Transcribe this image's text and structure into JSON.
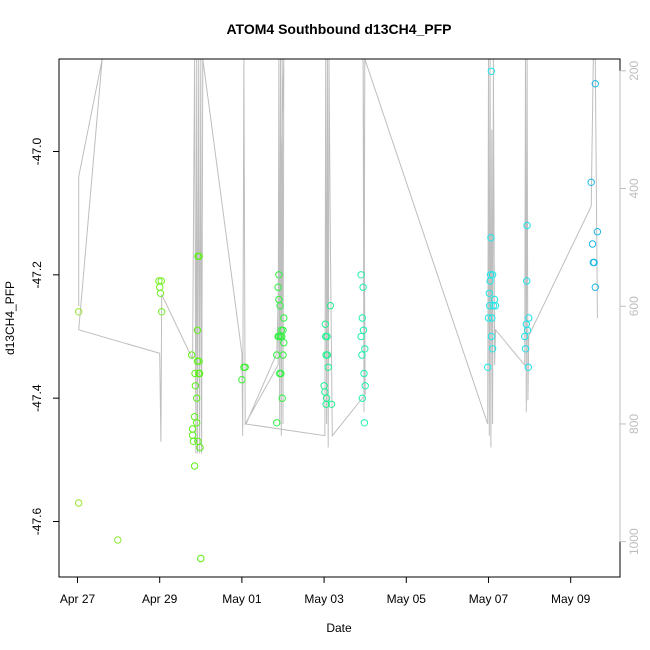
{
  "chart_data": {
    "type": "scatter",
    "title": "ATOM4 Southbound d13CH4_PFP",
    "xlabel": "Date",
    "ylabel": "d13CH4_PFP",
    "x_ticks": [
      {
        "label": "Apr 27",
        "day": 0
      },
      {
        "label": "Apr 29",
        "day": 2
      },
      {
        "label": "May 01",
        "day": 4
      },
      {
        "label": "May 03",
        "day": 6
      },
      {
        "label": "May 05",
        "day": 8
      },
      {
        "label": "May 07",
        "day": 10
      },
      {
        "label": "May 09",
        "day": 12
      }
    ],
    "xlim_day": [
      -0.45,
      13.2
    ],
    "ylim": [
      -47.69,
      -46.85
    ],
    "y_ticks": [
      -47.0,
      -47.2,
      -47.4,
      -47.6
    ],
    "y_tick_labels": [
      "-47.0",
      "-47.2",
      "-47.4",
      "-47.6"
    ],
    "y2_ticks": [
      200,
      400,
      600,
      800,
      1000
    ],
    "y2_tick_labels": [
      "200",
      "400",
      "600",
      "800",
      "1000"
    ],
    "y2lim": [
      180,
      1060
    ],
    "grid": false,
    "legend": "none",
    "colors": {
      "line": "#bebebe",
      "axis": "#000000",
      "axis2": "#bebebe"
    },
    "points": [
      {
        "day": 0.03,
        "y": -47.26,
        "color": "#99e62e"
      },
      {
        "day": 0.03,
        "y": -47.57,
        "color": "#99e62e"
      },
      {
        "day": 0.98,
        "y": -47.63,
        "color": "#8ee630"
      },
      {
        "day": 1.98,
        "y": -47.21,
        "color": "#70f020"
      },
      {
        "day": 2.0,
        "y": -47.22,
        "color": "#70f020"
      },
      {
        "day": 2.04,
        "y": -47.21,
        "color": "#70f020"
      },
      {
        "day": 2.02,
        "y": -47.23,
        "color": "#70f020"
      },
      {
        "day": 2.05,
        "y": -47.26,
        "color": "#70f020"
      },
      {
        "day": 2.78,
        "y": -47.33,
        "color": "#5cf018"
      },
      {
        "day": 2.8,
        "y": -47.45,
        "color": "#5cf018"
      },
      {
        "day": 2.8,
        "y": -47.46,
        "color": "#5cf018"
      },
      {
        "day": 2.82,
        "y": -47.47,
        "color": "#5cf018"
      },
      {
        "day": 2.85,
        "y": -47.43,
        "color": "#5cf018"
      },
      {
        "day": 2.85,
        "y": -47.51,
        "color": "#5cf018"
      },
      {
        "day": 2.86,
        "y": -47.36,
        "color": "#5cf018"
      },
      {
        "day": 2.87,
        "y": -47.38,
        "color": "#5cf018"
      },
      {
        "day": 2.9,
        "y": -47.44,
        "color": "#5cf018"
      },
      {
        "day": 2.9,
        "y": -47.4,
        "color": "#5cf018"
      },
      {
        "day": 2.92,
        "y": -47.29,
        "color": "#5cf018"
      },
      {
        "day": 2.92,
        "y": -47.34,
        "color": "#5cf018"
      },
      {
        "day": 2.93,
        "y": -47.17,
        "color": "#5cf018"
      },
      {
        "day": 2.93,
        "y": -47.47,
        "color": "#5cf018"
      },
      {
        "day": 2.95,
        "y": -47.36,
        "color": "#5cf018"
      },
      {
        "day": 2.96,
        "y": -47.17,
        "color": "#5cf018"
      },
      {
        "day": 2.96,
        "y": -47.34,
        "color": "#5cf018"
      },
      {
        "day": 2.97,
        "y": -47.36,
        "color": "#5cf018"
      },
      {
        "day": 2.98,
        "y": -47.48,
        "color": "#5cf018"
      },
      {
        "day": 3.0,
        "y": -47.66,
        "color": "#5cf018"
      },
      {
        "day": 4.0,
        "y": -47.37,
        "color": "#3cf030"
      },
      {
        "day": 4.05,
        "y": -47.35,
        "color": "#3cf030"
      },
      {
        "day": 4.08,
        "y": -47.35,
        "color": "#3cf030"
      },
      {
        "day": 4.85,
        "y": -47.44,
        "color": "#30f040"
      },
      {
        "day": 4.85,
        "y": -47.33,
        "color": "#30f040"
      },
      {
        "day": 4.88,
        "y": -47.3,
        "color": "#30f040"
      },
      {
        "day": 4.88,
        "y": -47.22,
        "color": "#30f040"
      },
      {
        "day": 4.9,
        "y": -47.24,
        "color": "#30f040"
      },
      {
        "day": 4.9,
        "y": -47.2,
        "color": "#30f040"
      },
      {
        "day": 4.9,
        "y": -47.3,
        "color": "#30f040"
      },
      {
        "day": 4.92,
        "y": -47.36,
        "color": "#30f040"
      },
      {
        "day": 4.93,
        "y": -47.25,
        "color": "#30f040"
      },
      {
        "day": 4.94,
        "y": -47.3,
        "color": "#30f040"
      },
      {
        "day": 4.95,
        "y": -47.36,
        "color": "#30f040"
      },
      {
        "day": 4.96,
        "y": -47.29,
        "color": "#30f040"
      },
      {
        "day": 4.97,
        "y": -47.3,
        "color": "#30f040"
      },
      {
        "day": 4.98,
        "y": -47.4,
        "color": "#30f040"
      },
      {
        "day": 5.0,
        "y": -47.33,
        "color": "#30f040"
      },
      {
        "day": 5.0,
        "y": -47.29,
        "color": "#30f040"
      },
      {
        "day": 5.02,
        "y": -47.27,
        "color": "#30f040"
      },
      {
        "day": 5.02,
        "y": -47.31,
        "color": "#30f040"
      },
      {
        "day": 6.0,
        "y": -47.38,
        "color": "#20f090"
      },
      {
        "day": 6.02,
        "y": -47.39,
        "color": "#20f090"
      },
      {
        "day": 6.03,
        "y": -47.28,
        "color": "#20f090"
      },
      {
        "day": 6.04,
        "y": -47.3,
        "color": "#20f090"
      },
      {
        "day": 6.05,
        "y": -47.33,
        "color": "#20f090"
      },
      {
        "day": 6.05,
        "y": -47.41,
        "color": "#20f090"
      },
      {
        "day": 6.06,
        "y": -47.4,
        "color": "#20f090"
      },
      {
        "day": 6.07,
        "y": -47.3,
        "color": "#20f090"
      },
      {
        "day": 6.08,
        "y": -47.33,
        "color": "#20f090"
      },
      {
        "day": 6.1,
        "y": -47.35,
        "color": "#20f090"
      },
      {
        "day": 6.15,
        "y": -47.25,
        "color": "#20f090"
      },
      {
        "day": 6.18,
        "y": -47.41,
        "color": "#20f090"
      },
      {
        "day": 6.9,
        "y": -47.2,
        "color": "#20f0b0"
      },
      {
        "day": 6.9,
        "y": -47.3,
        "color": "#20f0b0"
      },
      {
        "day": 6.92,
        "y": -47.33,
        "color": "#20f0b0"
      },
      {
        "day": 6.93,
        "y": -47.27,
        "color": "#20f0b0"
      },
      {
        "day": 6.93,
        "y": -47.4,
        "color": "#20f0b0"
      },
      {
        "day": 6.95,
        "y": -47.22,
        "color": "#20f0b0"
      },
      {
        "day": 6.96,
        "y": -47.29,
        "color": "#20f0b0"
      },
      {
        "day": 6.97,
        "y": -47.36,
        "color": "#20f0b0"
      },
      {
        "day": 6.98,
        "y": -47.44,
        "color": "#20f0b0"
      },
      {
        "day": 6.99,
        "y": -47.32,
        "color": "#20f0b0"
      },
      {
        "day": 7.0,
        "y": -47.38,
        "color": "#20f0b0"
      },
      {
        "day": 9.98,
        "y": -47.35,
        "color": "#20e8e8"
      },
      {
        "day": 10.0,
        "y": -47.27,
        "color": "#20e8e8"
      },
      {
        "day": 10.02,
        "y": -47.23,
        "color": "#20e8e8"
      },
      {
        "day": 10.03,
        "y": -47.25,
        "color": "#20e8e8"
      },
      {
        "day": 10.04,
        "y": -47.21,
        "color": "#20e8e8"
      },
      {
        "day": 10.05,
        "y": -47.2,
        "color": "#20e8e8"
      },
      {
        "day": 10.06,
        "y": -47.14,
        "color": "#20e8e8"
      },
      {
        "day": 10.07,
        "y": -46.87,
        "color": "#20e8e8"
      },
      {
        "day": 10.07,
        "y": -47.3,
        "color": "#20e8e8"
      },
      {
        "day": 10.08,
        "y": -47.27,
        "color": "#20e8e8"
      },
      {
        "day": 10.1,
        "y": -47.2,
        "color": "#20e8e8"
      },
      {
        "day": 10.1,
        "y": -47.32,
        "color": "#20e8e8"
      },
      {
        "day": 10.12,
        "y": -47.25,
        "color": "#20e8e8"
      },
      {
        "day": 10.15,
        "y": -47.24,
        "color": "#20e8e8"
      },
      {
        "day": 10.17,
        "y": -47.25,
        "color": "#20e8e8"
      },
      {
        "day": 10.88,
        "y": -47.3,
        "color": "#20e0e8"
      },
      {
        "day": 10.9,
        "y": -47.32,
        "color": "#20e0e8"
      },
      {
        "day": 10.92,
        "y": -47.28,
        "color": "#20e0e8"
      },
      {
        "day": 10.93,
        "y": -47.21,
        "color": "#20e0e8"
      },
      {
        "day": 10.94,
        "y": -47.12,
        "color": "#20e0e8"
      },
      {
        "day": 10.95,
        "y": -47.29,
        "color": "#20e0e8"
      },
      {
        "day": 10.97,
        "y": -47.35,
        "color": "#20e0e8"
      },
      {
        "day": 10.98,
        "y": -47.27,
        "color": "#20e0e8"
      },
      {
        "day": 12.5,
        "y": -47.05,
        "color": "#20b8e8"
      },
      {
        "day": 12.53,
        "y": -47.15,
        "color": "#20b8e8"
      },
      {
        "day": 12.55,
        "y": -47.18,
        "color": "#20b8e8"
      },
      {
        "day": 12.57,
        "y": -47.18,
        "color": "#20b8e8"
      },
      {
        "day": 12.6,
        "y": -46.89,
        "color": "#20b8e8"
      },
      {
        "day": 12.6,
        "y": -47.22,
        "color": "#20b8e8"
      },
      {
        "day": 12.65,
        "y": -47.13,
        "color": "#20b8e8"
      }
    ],
    "line_series": {
      "name": "",
      "axis": "right",
      "points": [
        [
          0.03,
          600
        ],
        [
          0.03,
          380
        ],
        [
          0.6,
          180
        ],
        [
          0.03,
          640
        ],
        [
          2.0,
          680
        ],
        [
          2.03,
          830
        ],
        [
          2.05,
          580
        ],
        [
          2.8,
          690
        ],
        [
          2.85,
          180
        ],
        [
          2.88,
          850
        ],
        [
          2.9,
          180
        ],
        [
          2.92,
          850
        ],
        [
          2.95,
          180
        ],
        [
          2.97,
          850
        ],
        [
          3.0,
          180
        ],
        [
          3.02,
          850
        ],
        [
          3.05,
          180
        ],
        [
          4.0,
          680
        ],
        [
          4.02,
          820
        ],
        [
          4.05,
          180
        ],
        [
          4.08,
          800
        ],
        [
          4.88,
          700
        ],
        [
          4.9,
          180
        ],
        [
          4.92,
          800
        ],
        [
          4.94,
          180
        ],
        [
          4.96,
          820
        ],
        [
          4.98,
          180
        ],
        [
          5.0,
          800
        ],
        [
          5.02,
          180
        ],
        [
          4.85,
          680
        ],
        [
          4.1,
          800
        ],
        [
          6.02,
          820
        ],
        [
          6.04,
          180
        ],
        [
          6.06,
          800
        ],
        [
          6.08,
          180
        ],
        [
          6.1,
          840
        ],
        [
          6.12,
          180
        ],
        [
          6.15,
          480
        ],
        [
          6.2,
          820
        ],
        [
          7.0,
          750
        ],
        [
          6.95,
          180
        ],
        [
          6.97,
          780
        ],
        [
          6.99,
          180
        ],
        [
          9.98,
          800
        ],
        [
          10.0,
          180
        ],
        [
          10.02,
          820
        ],
        [
          10.04,
          180
        ],
        [
          10.06,
          840
        ],
        [
          10.08,
          300
        ],
        [
          10.1,
          800
        ],
        [
          10.12,
          180
        ],
        [
          10.15,
          700
        ],
        [
          10.17,
          640
        ],
        [
          10.88,
          700
        ],
        [
          10.9,
          180
        ],
        [
          10.92,
          780
        ],
        [
          10.94,
          180
        ],
        [
          10.96,
          760
        ],
        [
          10.98,
          650
        ],
        [
          12.5,
          430
        ],
        [
          12.55,
          180
        ],
        [
          12.6,
          180
        ],
        [
          12.65,
          620
        ]
      ]
    }
  }
}
